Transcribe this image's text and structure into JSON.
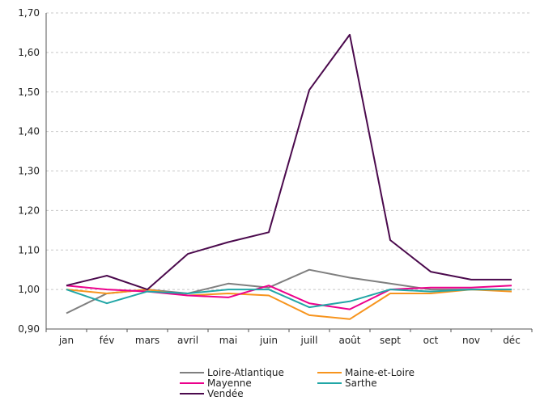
{
  "chart_data": {
    "type": "line",
    "categories": [
      "jan",
      "fév",
      "mars",
      "avril",
      "mai",
      "juin",
      "juill",
      "août",
      "sept",
      "oct",
      "nov",
      "déc"
    ],
    "ylim": [
      0.9,
      1.7
    ],
    "yticks": [
      "0,90",
      "1,00",
      "1,10",
      "1,20",
      "1,30",
      "1,40",
      "1,50",
      "1,60",
      "1,70"
    ],
    "ytick_values": [
      0.9,
      1.0,
      1.1,
      1.2,
      1.3,
      1.4,
      1.5,
      1.6,
      1.7
    ],
    "grid": true,
    "legend_position": "bottom",
    "series": [
      {
        "name": "Loire-Atlantique",
        "color": "#7f7f7f",
        "values": [
          0.94,
          0.99,
          1.0,
          0.99,
          1.015,
          1.005,
          1.05,
          1.03,
          1.015,
          1.0,
          1.0,
          1.0
        ]
      },
      {
        "name": "Maine-et-Loire",
        "color": "#f7941d",
        "values": [
          1.0,
          0.99,
          1.0,
          0.985,
          0.99,
          0.985,
          0.935,
          0.925,
          0.99,
          0.99,
          1.0,
          0.995
        ]
      },
      {
        "name": "Mayenne",
        "color": "#ec008c",
        "values": [
          1.01,
          1.0,
          0.995,
          0.985,
          0.98,
          1.01,
          0.965,
          0.95,
          1.0,
          1.005,
          1.005,
          1.01
        ]
      },
      {
        "name": "Sarthe",
        "color": "#21a6a6",
        "values": [
          1.0,
          0.965,
          0.995,
          0.99,
          1.0,
          1.0,
          0.955,
          0.97,
          1.0,
          0.995,
          1.0,
          1.0
        ]
      },
      {
        "name": "Vendée",
        "color": "#4b0a4d",
        "values": [
          1.01,
          1.035,
          1.0,
          1.09,
          1.12,
          1.145,
          1.505,
          1.645,
          1.125,
          1.045,
          1.025,
          1.025
        ]
      }
    ]
  }
}
